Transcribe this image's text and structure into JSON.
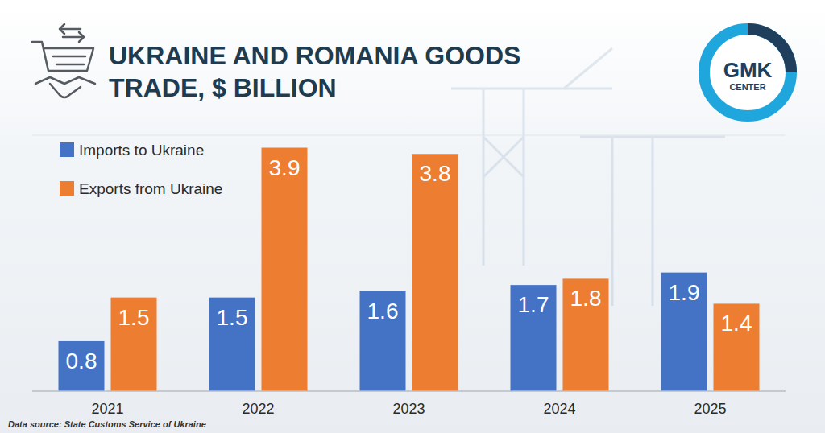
{
  "chart_data": {
    "type": "bar",
    "title": "UKRAINE AND ROMANIA GOODS TRADE, $ BILLION",
    "source": "Data source: State Customs Service of Ukraine",
    "logo": "GMK CENTER",
    "categories": [
      "2021",
      "2022",
      "2023",
      "2024",
      "2025"
    ],
    "series": [
      {
        "name": "Imports to Ukraine",
        "color": "#4472c4",
        "values": [
          0.8,
          1.5,
          1.6,
          1.7,
          1.9
        ]
      },
      {
        "name": "Exports from Ukraine",
        "color": "#ed7d31",
        "values": [
          1.5,
          3.9,
          3.8,
          1.8,
          1.4
        ]
      }
    ],
    "ylim": [
      0,
      4.1
    ],
    "grid": false,
    "legend": "top-left",
    "data_labels": true,
    "tick_labels": "x"
  }
}
